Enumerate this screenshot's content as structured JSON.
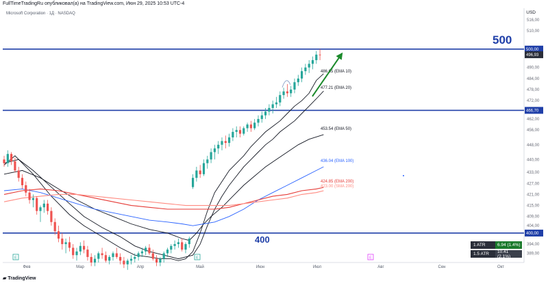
{
  "header": {
    "publisher": "FullTimeTradingRu опубликовал(а) на TradingView.com, Июн 29, 2025 10:53 UTC-4",
    "symbol": "Microsoft Corporation · 1Д · NASDAQ",
    "currency": "USD",
    "logo": "TradingView"
  },
  "annotations": {
    "level_high": "500",
    "level_low": "400"
  },
  "atr": [
    {
      "label": "1 ATR",
      "value": "6.94 (1.4%)",
      "color": "#1b7a2c"
    },
    {
      "label": "1.5 ATR",
      "value": "10.41 (2.1%)",
      "color": "#2a2e39"
    }
  ],
  "colors": {
    "up": "#26a69a",
    "down": "#ef5350",
    "level": "#1f3fa8",
    "ema10": "#131722",
    "ema20": "#131722",
    "ema50": "#131722",
    "ema100": "#2962ff",
    "ema200": "#e53935",
    "sma200": "#ff8a80",
    "arrow": "#1b8a2b"
  },
  "chart_data": {
    "type": "line",
    "title": "Microsoft Corporation · 1Д · NASDAQ",
    "ylim": [
      384,
      520
    ],
    "xlabel": "",
    "ylabel": "",
    "x_tick_labels": [
      "Фев",
      "Мар",
      "Апр",
      "Май",
      "Июн",
      "Июл",
      "Авг",
      "Сен",
      "Окт"
    ],
    "y_tick_labels": [
      "516,00",
      "510,00",
      "500,00",
      "496,93",
      "490,00",
      "484,00",
      "478,00",
      "472,00",
      "466,70",
      "462,00",
      "456,00",
      "448,00",
      "440,00",
      "433,00",
      "427,00",
      "421,00",
      "415,00",
      "409,00",
      "404,00",
      "400,00",
      "394,00",
      "389,00"
    ],
    "horizontal_levels": [
      {
        "value": 500.0,
        "label": "500,00"
      },
      {
        "value": 466.7,
        "label": "466,70"
      },
      {
        "value": 400.0,
        "label": "400,00"
      }
    ],
    "last_price": {
      "value": 496.93,
      "label": "496,93"
    },
    "series": [
      {
        "name": "EMA 10",
        "last": 486.65,
        "label": "486.65 (EMA 10)",
        "points": [
          [
            0,
            437
          ],
          [
            3,
            442
          ],
          [
            8,
            432
          ],
          [
            13,
            420
          ],
          [
            18,
            410
          ],
          [
            22,
            404
          ],
          [
            27,
            398
          ],
          [
            32,
            392
          ],
          [
            36,
            388
          ],
          [
            40,
            387
          ],
          [
            43,
            386
          ],
          [
            46,
            386
          ],
          [
            48,
            385
          ],
          [
            50,
            386
          ],
          [
            52,
            390
          ],
          [
            54,
            400
          ],
          [
            56,
            412
          ],
          [
            58,
            422
          ],
          [
            60,
            428
          ],
          [
            62,
            434
          ],
          [
            64,
            438
          ],
          [
            66,
            442
          ],
          [
            68,
            447
          ],
          [
            70,
            451
          ],
          [
            72,
            455
          ],
          [
            74,
            458
          ],
          [
            76,
            461
          ],
          [
            78,
            465
          ],
          [
            80,
            469
          ],
          [
            82,
            472
          ],
          [
            84,
            476
          ],
          [
            86,
            483
          ],
          [
            88,
            486.65
          ]
        ]
      },
      {
        "name": "EMA 20",
        "last": 477.21,
        "label": "477.21 (EMA 20)",
        "points": [
          [
            0,
            438
          ],
          [
            4,
            440
          ],
          [
            8,
            434
          ],
          [
            13,
            425
          ],
          [
            18,
            416
          ],
          [
            22,
            409
          ],
          [
            27,
            403
          ],
          [
            32,
            398
          ],
          [
            36,
            393
          ],
          [
            40,
            390
          ],
          [
            44,
            388
          ],
          [
            48,
            386
          ],
          [
            50,
            387
          ],
          [
            52,
            388
          ],
          [
            54,
            394
          ],
          [
            56,
            404
          ],
          [
            58,
            413
          ],
          [
            60,
            420
          ],
          [
            62,
            426
          ],
          [
            64,
            431
          ],
          [
            66,
            436
          ],
          [
            68,
            440
          ],
          [
            70,
            444
          ],
          [
            72,
            448
          ],
          [
            74,
            451
          ],
          [
            76,
            455
          ],
          [
            78,
            458
          ],
          [
            80,
            461
          ],
          [
            82,
            465
          ],
          [
            84,
            469
          ],
          [
            86,
            473
          ],
          [
            88,
            477.21
          ]
        ]
      },
      {
        "name": "EMA 50",
        "last": 453.54,
        "label": "453.54 (EMA 50)",
        "points": [
          [
            0,
            432
          ],
          [
            5,
            434
          ],
          [
            10,
            430
          ],
          [
            15,
            424
          ],
          [
            20,
            418
          ],
          [
            25,
            413
          ],
          [
            30,
            409
          ],
          [
            35,
            405
          ],
          [
            40,
            402
          ],
          [
            45,
            400
          ],
          [
            49,
            397
          ],
          [
            51,
            396
          ],
          [
            53,
            400
          ],
          [
            55,
            405
          ],
          [
            57,
            409
          ],
          [
            60,
            414
          ],
          [
            63,
            420
          ],
          [
            66,
            426
          ],
          [
            69,
            431
          ],
          [
            72,
            436
          ],
          [
            75,
            440
          ],
          [
            78,
            444
          ],
          [
            81,
            448
          ],
          [
            84,
            451
          ],
          [
            88,
            453.54
          ]
        ]
      },
      {
        "name": "EMA 100",
        "last": 436.04,
        "label": "436.04 (EMA 100)",
        "points": [
          [
            0,
            423
          ],
          [
            5,
            424
          ],
          [
            10,
            422
          ],
          [
            15,
            419
          ],
          [
            20,
            416
          ],
          [
            25,
            413
          ],
          [
            30,
            411
          ],
          [
            35,
            409
          ],
          [
            40,
            407
          ],
          [
            45,
            406
          ],
          [
            49,
            405
          ],
          [
            52,
            404
          ],
          [
            55,
            405
          ],
          [
            58,
            406
          ],
          [
            62,
            409
          ],
          [
            66,
            413
          ],
          [
            70,
            418
          ],
          [
            74,
            422
          ],
          [
            78,
            426
          ],
          [
            82,
            430
          ],
          [
            86,
            434
          ],
          [
            88,
            436.04
          ]
        ]
      },
      {
        "name": "EMA 200",
        "last": 424.85,
        "label": "424.85 (EMA 200)",
        "points": [
          [
            0,
            421
          ],
          [
            5,
            423
          ],
          [
            10,
            424
          ],
          [
            15,
            423
          ],
          [
            20,
            421
          ],
          [
            25,
            419
          ],
          [
            30,
            417
          ],
          [
            35,
            415
          ],
          [
            40,
            414
          ],
          [
            45,
            413
          ],
          [
            50,
            413
          ],
          [
            54,
            413
          ],
          [
            58,
            413
          ],
          [
            62,
            414
          ],
          [
            66,
            416
          ],
          [
            70,
            418
          ],
          [
            74,
            420
          ],
          [
            78,
            421
          ],
          [
            82,
            423
          ],
          [
            86,
            424
          ],
          [
            88,
            424.85
          ]
        ]
      },
      {
        "name": "SMA 200",
        "last": 423.0,
        "label": "423.00 (SMA 200)",
        "points": [
          [
            0,
            417
          ],
          [
            5,
            419
          ],
          [
            10,
            420
          ],
          [
            15,
            421
          ],
          [
            20,
            421
          ],
          [
            25,
            420
          ],
          [
            30,
            419
          ],
          [
            35,
            418
          ],
          [
            40,
            417
          ],
          [
            45,
            416
          ],
          [
            50,
            415
          ],
          [
            54,
            415
          ],
          [
            58,
            415
          ],
          [
            62,
            415
          ],
          [
            66,
            416
          ],
          [
            70,
            417
          ],
          [
            74,
            418
          ],
          [
            78,
            419
          ],
          [
            82,
            421
          ],
          [
            86,
            422
          ],
          [
            88,
            423.0
          ]
        ]
      }
    ],
    "candles": [
      [
        0,
        440,
        442,
        436,
        438
      ],
      [
        1,
        438,
        445,
        436,
        443
      ],
      [
        2,
        443,
        444,
        437,
        439
      ],
      [
        3,
        439,
        441,
        433,
        434
      ],
      [
        4,
        434,
        436,
        428,
        430
      ],
      [
        5,
        430,
        432,
        424,
        426
      ],
      [
        6,
        426,
        428,
        420,
        422
      ],
      [
        7,
        422,
        424,
        416,
        418
      ],
      [
        8,
        418,
        421,
        414,
        419
      ],
      [
        9,
        419,
        420,
        410,
        412
      ],
      [
        10,
        412,
        415,
        406,
        414
      ],
      [
        11,
        414,
        418,
        411,
        416
      ],
      [
        12,
        416,
        418,
        410,
        412
      ],
      [
        13,
        412,
        414,
        404,
        406
      ],
      [
        14,
        406,
        408,
        399,
        401
      ],
      [
        15,
        401,
        404,
        395,
        397
      ],
      [
        16,
        397,
        400,
        391,
        394
      ],
      [
        17,
        394,
        397,
        389,
        395
      ],
      [
        18,
        395,
        398,
        390,
        392
      ],
      [
        19,
        392,
        394,
        386,
        388
      ],
      [
        20,
        388,
        392,
        385,
        390
      ],
      [
        21,
        390,
        395,
        388,
        393
      ],
      [
        22,
        393,
        396,
        389,
        391
      ],
      [
        23,
        391,
        393,
        385,
        387
      ],
      [
        24,
        387,
        389,
        382,
        384
      ],
      [
        25,
        384,
        388,
        382,
        386
      ],
      [
        26,
        386,
        390,
        384,
        389
      ],
      [
        27,
        389,
        392,
        386,
        388
      ],
      [
        28,
        388,
        390,
        384,
        385
      ],
      [
        29,
        385,
        388,
        383,
        387
      ],
      [
        30,
        387,
        390,
        385,
        389
      ],
      [
        31,
        389,
        392,
        386,
        387
      ],
      [
        32,
        387,
        389,
        383,
        385
      ],
      [
        33,
        385,
        387,
        381,
        383
      ],
      [
        34,
        383,
        386,
        380,
        385
      ],
      [
        35,
        385,
        388,
        383,
        386
      ],
      [
        36,
        386,
        389,
        384,
        387
      ],
      [
        37,
        387,
        390,
        385,
        389
      ],
      [
        38,
        389,
        392,
        387,
        390
      ],
      [
        39,
        390,
        393,
        388,
        392
      ],
      [
        40,
        392,
        394,
        388,
        389
      ],
      [
        41,
        389,
        391,
        385,
        386
      ],
      [
        42,
        386,
        388,
        382,
        384
      ],
      [
        43,
        384,
        387,
        382,
        386
      ],
      [
        44,
        386,
        390,
        384,
        389
      ],
      [
        45,
        389,
        392,
        387,
        391
      ],
      [
        46,
        391,
        394,
        389,
        393
      ],
      [
        47,
        393,
        396,
        391,
        394
      ],
      [
        48,
        394,
        397,
        392,
        395
      ],
      [
        49,
        395,
        397,
        390,
        391
      ],
      [
        50,
        391,
        395,
        389,
        394
      ],
      [
        51,
        394,
        398,
        392,
        397
      ],
      [
        52,
        425,
        432,
        424,
        430
      ],
      [
        53,
        430,
        436,
        428,
        434
      ],
      [
        54,
        434,
        437,
        430,
        432
      ],
      [
        55,
        432,
        440,
        431,
        438
      ],
      [
        56,
        438,
        442,
        435,
        440
      ],
      [
        57,
        440,
        446,
        438,
        444
      ],
      [
        58,
        444,
        448,
        440,
        446
      ],
      [
        59,
        446,
        450,
        443,
        448
      ],
      [
        60,
        448,
        452,
        445,
        450
      ],
      [
        61,
        450,
        453,
        446,
        449
      ],
      [
        62,
        449,
        454,
        447,
        452
      ],
      [
        63,
        452,
        457,
        450,
        455
      ],
      [
        64,
        455,
        458,
        452,
        456
      ],
      [
        65,
        456,
        458,
        452,
        454
      ],
      [
        66,
        454,
        458,
        453,
        457
      ],
      [
        67,
        457,
        460,
        455,
        459
      ],
      [
        68,
        459,
        461,
        455,
        457
      ],
      [
        69,
        457,
        462,
        456,
        460
      ],
      [
        70,
        460,
        464,
        458,
        462
      ],
      [
        71,
        462,
        466,
        460,
        464
      ],
      [
        72,
        464,
        468,
        462,
        466
      ],
      [
        73,
        466,
        470,
        464,
        468
      ],
      [
        74,
        468,
        472,
        465,
        470
      ],
      [
        75,
        470,
        474,
        468,
        471
      ],
      [
        76,
        471,
        477,
        469,
        475
      ],
      [
        77,
        475,
        479,
        473,
        477
      ],
      [
        78,
        477,
        481,
        474,
        476
      ],
      [
        79,
        476,
        480,
        474,
        478
      ],
      [
        80,
        478,
        484,
        476,
        482
      ],
      [
        81,
        482,
        486,
        480,
        484
      ],
      [
        82,
        484,
        490,
        482,
        488
      ],
      [
        83,
        488,
        492,
        486,
        490
      ],
      [
        84,
        490,
        494,
        487,
        492
      ],
      [
        85,
        492,
        496,
        489,
        494
      ],
      [
        86,
        494,
        499,
        492,
        497
      ],
      [
        87,
        497,
        500,
        494,
        496.93
      ]
    ]
  }
}
